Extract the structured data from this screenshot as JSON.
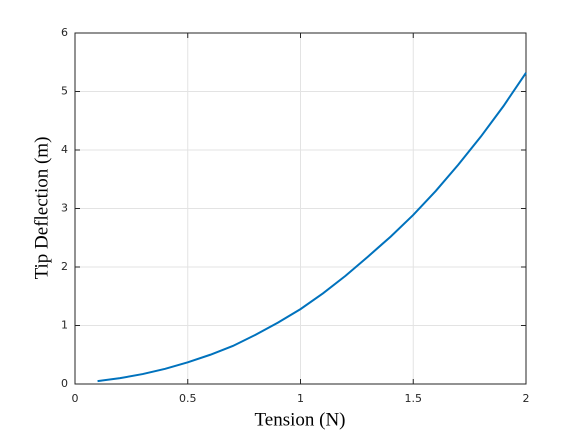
{
  "chart_data": {
    "type": "line",
    "xlabel": "Tension (N)",
    "ylabel": "Tip Deflection (m)",
    "x": [
      0.1,
      0.2,
      0.3,
      0.4,
      0.5,
      0.6,
      0.7,
      0.8,
      0.9,
      1.0,
      1.1,
      1.2,
      1.3,
      1.4,
      1.5,
      1.6,
      1.7,
      1.8,
      1.9,
      2.0
    ],
    "series": [
      {
        "color": "#0072bd",
        "values": [
          0.05,
          0.1,
          0.17,
          0.26,
          0.37,
          0.5,
          0.65,
          0.84,
          1.05,
          1.28,
          1.55,
          1.85,
          2.18,
          2.52,
          2.89,
          3.3,
          3.75,
          4.23,
          4.75,
          5.32
        ]
      }
    ],
    "xlim": [
      0,
      2
    ],
    "ylim": [
      0,
      6
    ],
    "xticks": [
      0,
      0.5,
      1,
      1.5,
      2
    ],
    "yticks": [
      0,
      1,
      2,
      3,
      4,
      5,
      6
    ],
    "grid": true
  }
}
